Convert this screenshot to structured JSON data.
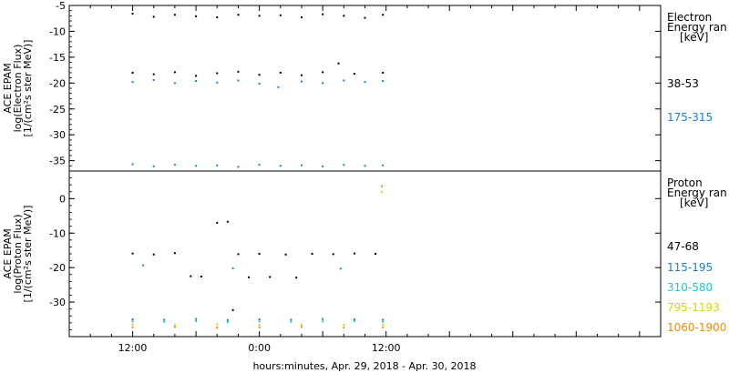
{
  "x_axis": {
    "title": "hours:minutes, Apr. 29, 2018 - Apr. 30, 2018",
    "ticks": [
      "12:00",
      "0:00",
      "12:00"
    ]
  },
  "chart_data": [
    {
      "type": "scatter",
      "panel": "electron",
      "ylabel_lines": [
        "ACE EPAM",
        "log(Electron Flux)",
        "[1/(cm²s ster MeV)]"
      ],
      "ylim": [
        -37,
        -5
      ],
      "yticks": [
        "-5",
        "-10",
        "-15",
        "-20",
        "-25",
        "-30",
        "-35"
      ],
      "xlim_hours": [
        -6,
        50
      ],
      "legend": {
        "title_lines": [
          "Electron",
          "Energy ran",
          "[keV]"
        ],
        "placement": "right"
      },
      "series": [
        {
          "name": "38-53",
          "color": "#000000",
          "points": [
            [
              0,
              -6.6
            ],
            [
              2,
              -7.2
            ],
            [
              4,
              -6.8
            ],
            [
              6,
              -7.1
            ],
            [
              8,
              -7.3
            ],
            [
              10,
              -6.8
            ],
            [
              12,
              -7.0
            ],
            [
              14,
              -6.9
            ],
            [
              16,
              -7.3
            ],
            [
              18,
              -6.7
            ],
            [
              20,
              -7.0
            ],
            [
              22,
              -7.4
            ],
            [
              23.7,
              -6.8
            ],
            [
              0,
              -18.0
            ],
            [
              2,
              -18.3
            ],
            [
              4,
              -17.9
            ],
            [
              6,
              -18.6
            ],
            [
              8,
              -18.1
            ],
            [
              10,
              -17.8
            ],
            [
              12,
              -18.4
            ],
            [
              14,
              -18.0
            ],
            [
              16,
              -18.5
            ],
            [
              18,
              -17.9
            ],
            [
              19.5,
              -16.2
            ],
            [
              21,
              -18.2
            ],
            [
              23.7,
              -18.0
            ]
          ]
        },
        {
          "name": "175-315",
          "color": "#1c7fd6",
          "points": [
            [
              0,
              -19.8
            ],
            [
              2,
              -19.4
            ],
            [
              4,
              -20.0
            ],
            [
              6,
              -19.6
            ],
            [
              8,
              -19.9
            ],
            [
              10,
              -19.5
            ],
            [
              12,
              -20.1
            ],
            [
              13.8,
              -20.8
            ],
            [
              16,
              -19.7
            ],
            [
              18,
              -20.0
            ],
            [
              20,
              -19.5
            ],
            [
              22,
              -19.8
            ],
            [
              23.7,
              -19.6
            ],
            [
              0,
              -35.7
            ],
            [
              2,
              -36.1
            ],
            [
              4,
              -35.8
            ],
            [
              6,
              -36.0
            ],
            [
              8,
              -35.9
            ],
            [
              10,
              -36.2
            ],
            [
              12,
              -35.8
            ],
            [
              14,
              -36.0
            ],
            [
              16,
              -35.9
            ],
            [
              18,
              -36.1
            ],
            [
              20,
              -35.8
            ],
            [
              22,
              -36.0
            ],
            [
              23.7,
              -35.9
            ]
          ]
        }
      ]
    },
    {
      "type": "scatter",
      "panel": "proton",
      "ylabel_lines": [
        "ACE EPAM",
        "log(Proton Flux)",
        "[1/(cm²s ster MeV)]"
      ],
      "ylim": [
        -40,
        8
      ],
      "yticks": [
        "0",
        "-10",
        "-20",
        "-30"
      ],
      "xlim_hours": [
        -6,
        50
      ],
      "legend": {
        "title_lines": [
          "Proton",
          "Energy ran",
          "[keV]"
        ],
        "placement": "right"
      },
      "series": [
        {
          "name": "47-68",
          "color": "#000000",
          "points": [
            [
              0,
              -15.9
            ],
            [
              2,
              -16.2
            ],
            [
              4,
              -15.8
            ],
            [
              5.5,
              -22.5
            ],
            [
              6.5,
              -22.6
            ],
            [
              8,
              -7.0
            ],
            [
              9,
              -6.7
            ],
            [
              9.5,
              -32.3
            ],
            [
              10,
              -16.1
            ],
            [
              11,
              -22.8
            ],
            [
              12,
              -16.0
            ],
            [
              13,
              -22.7
            ],
            [
              14.5,
              -16.2
            ],
            [
              15.5,
              -22.9
            ],
            [
              17,
              -16.0
            ],
            [
              19,
              -16.1
            ],
            [
              21,
              -15.9
            ],
            [
              23,
              -16.0
            ]
          ]
        },
        {
          "name": "115-195",
          "color": "#1c7fd6",
          "points": [
            [
              1,
              -19.3
            ],
            [
              9.5,
              -20.2
            ],
            [
              19.7,
              -20.3
            ],
            [
              0,
              -35.0
            ],
            [
              3,
              -35.1
            ],
            [
              6,
              -34.9
            ],
            [
              9,
              -35.2
            ],
            [
              12,
              -35.0
            ],
            [
              15,
              -35.1
            ],
            [
              18,
              -34.9
            ],
            [
              21,
              -35.0
            ],
            [
              23.7,
              -35.1
            ]
          ]
        },
        {
          "name": "310-580",
          "color": "#22c6c6",
          "points": [
            [
              0,
              -35.6
            ],
            [
              3,
              -35.7
            ],
            [
              6,
              -35.5
            ],
            [
              9,
              -35.8
            ],
            [
              12,
              -35.6
            ],
            [
              15,
              -35.7
            ],
            [
              18,
              -35.6
            ],
            [
              21,
              -35.5
            ],
            [
              23.7,
              -35.7
            ]
          ]
        },
        {
          "name": "795-1193",
          "color": "#dcd400",
          "points": [
            [
              0,
              -36.5
            ],
            [
              4,
              -36.6
            ],
            [
              8,
              -36.4
            ],
            [
              12,
              -36.6
            ],
            [
              16,
              -36.5
            ],
            [
              20,
              -36.6
            ],
            [
              23.7,
              -36.5
            ],
            [
              23.6,
              2.0
            ]
          ]
        },
        {
          "name": "1060-1900",
          "color": "#f08a00",
          "points": [
            [
              0,
              -37.3
            ],
            [
              4,
              -37.2
            ],
            [
              8,
              -37.4
            ],
            [
              12,
              -37.3
            ],
            [
              16,
              -37.2
            ],
            [
              20,
              -37.4
            ],
            [
              23.7,
              -37.3
            ],
            [
              23.6,
              3.6
            ]
          ]
        }
      ]
    }
  ]
}
